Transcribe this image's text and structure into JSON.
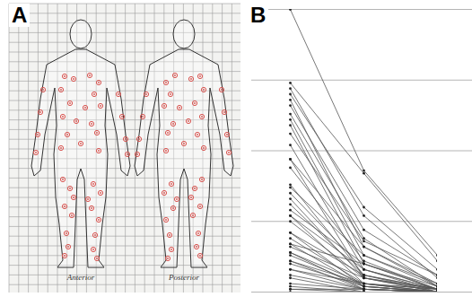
{
  "panel_a": {
    "label": "A",
    "views": [
      "Anterior",
      "Posterior"
    ]
  },
  "chart_data": {
    "type": "line",
    "title": "B",
    "categories": [
      null,
      null,
      null
    ],
    "color": "#555555",
    "marker": "circle",
    "line_style": "solid",
    "ylim": [
      0,
      100
    ],
    "yticks": [
      0,
      25,
      50,
      75,
      100
    ],
    "grid": true,
    "tick_labels": false,
    "series": [
      {
        "values": [
          100,
          43,
          13
        ]
      },
      {
        "values": [
          74,
          42,
          11
        ]
      },
      {
        "values": [
          72,
          27,
          5
        ]
      },
      {
        "values": [
          70,
          30,
          8
        ]
      },
      {
        "values": [
          68,
          16,
          3
        ]
      },
      {
        "values": [
          66,
          22,
          6
        ]
      },
      {
        "values": [
          63,
          19,
          2
        ]
      },
      {
        "values": [
          61,
          13,
          3
        ]
      },
      {
        "values": [
          59,
          10,
          1
        ]
      },
      {
        "values": [
          56,
          18,
          6
        ]
      },
      {
        "values": [
          52,
          8,
          1
        ]
      },
      {
        "values": [
          47,
          16,
          2
        ]
      },
      {
        "values": [
          47,
          5,
          0
        ]
      },
      {
        "values": [
          44,
          11,
          1
        ]
      },
      {
        "values": [
          38,
          6,
          1
        ]
      },
      {
        "values": [
          37,
          13,
          2
        ]
      },
      {
        "values": [
          35,
          8,
          0
        ]
      },
      {
        "values": [
          33,
          5,
          1
        ]
      },
      {
        "values": [
          31,
          6,
          0
        ]
      },
      {
        "values": [
          29,
          10,
          2
        ]
      },
      {
        "values": [
          27,
          3,
          0
        ]
      },
      {
        "values": [
          27,
          8,
          1
        ]
      },
      {
        "values": [
          25,
          5,
          0
        ]
      },
      {
        "values": [
          21,
          6,
          1
        ]
      },
      {
        "values": [
          21,
          2,
          0
        ]
      },
      {
        "values": [
          19,
          3,
          0
        ]
      },
      {
        "values": [
          17,
          10,
          1
        ]
      },
      {
        "values": [
          17,
          2,
          0
        ]
      },
      {
        "values": [
          16,
          5,
          1
        ]
      },
      {
        "values": [
          14,
          3,
          0
        ]
      },
      {
        "values": [
          14,
          1,
          0
        ]
      },
      {
        "values": [
          13,
          2,
          0
        ]
      },
      {
        "values": [
          11,
          3,
          1
        ]
      },
      {
        "values": [
          11,
          1,
          0
        ]
      },
      {
        "values": [
          10,
          2,
          0
        ]
      },
      {
        "values": [
          8,
          1,
          0
        ]
      },
      {
        "values": [
          8,
          3,
          1
        ]
      },
      {
        "values": [
          6,
          1,
          0
        ]
      },
      {
        "values": [
          5,
          0,
          0
        ]
      },
      {
        "values": [
          3,
          1,
          0
        ]
      },
      {
        "values": [
          2,
          0,
          0
        ]
      },
      {
        "values": [
          1,
          0,
          0
        ]
      },
      {
        "values": [
          1,
          1,
          0
        ]
      },
      {
        "values": [
          0,
          0,
          0
        ]
      }
    ]
  }
}
